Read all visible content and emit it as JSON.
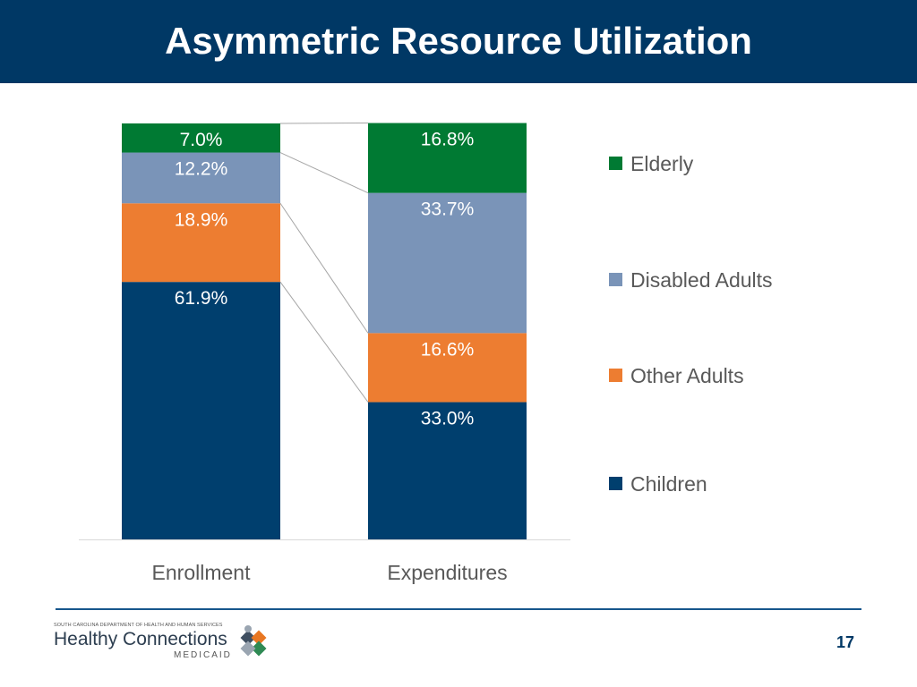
{
  "slide": {
    "title": "Asymmetric Resource Utilization",
    "page_number": "17"
  },
  "logo": {
    "department": "SOUTH CAROLINA DEPARTMENT OF HEALTH AND HUMAN SERVICES",
    "name": "Healthy Connections",
    "subname": "MEDICAID",
    "colors": [
      "#3f4f61",
      "#e87722",
      "#2f8a54",
      "#9aa5b1"
    ]
  },
  "chart_data": {
    "type": "bar",
    "stacked": true,
    "percent_stacked": true,
    "categories": [
      "Enrollment",
      "Expenditures"
    ],
    "series": [
      {
        "name": "Children",
        "values": [
          61.9,
          33.0
        ],
        "labels": [
          "61.9%",
          "33.0%"
        ],
        "color": "#003f6e"
      },
      {
        "name": "Other Adults",
        "values": [
          18.9,
          16.6
        ],
        "labels": [
          "18.9%",
          "16.6%"
        ],
        "color": "#ed7d31"
      },
      {
        "name": "Disabled Adults",
        "values": [
          12.2,
          33.7
        ],
        "labels": [
          "12.2%",
          "33.7%"
        ],
        "color": "#7a94b8"
      },
      {
        "name": "Elderly",
        "values": [
          7.0,
          16.8
        ],
        "labels": [
          "7.0%",
          "16.8%"
        ],
        "color": "#007a33"
      }
    ],
    "legend_order": [
      "Elderly",
      "Disabled Adults",
      "Other Adults",
      "Children"
    ],
    "ylim": [
      0,
      100
    ],
    "grid": false,
    "series_connector_lines": true,
    "legend_position": "right"
  }
}
